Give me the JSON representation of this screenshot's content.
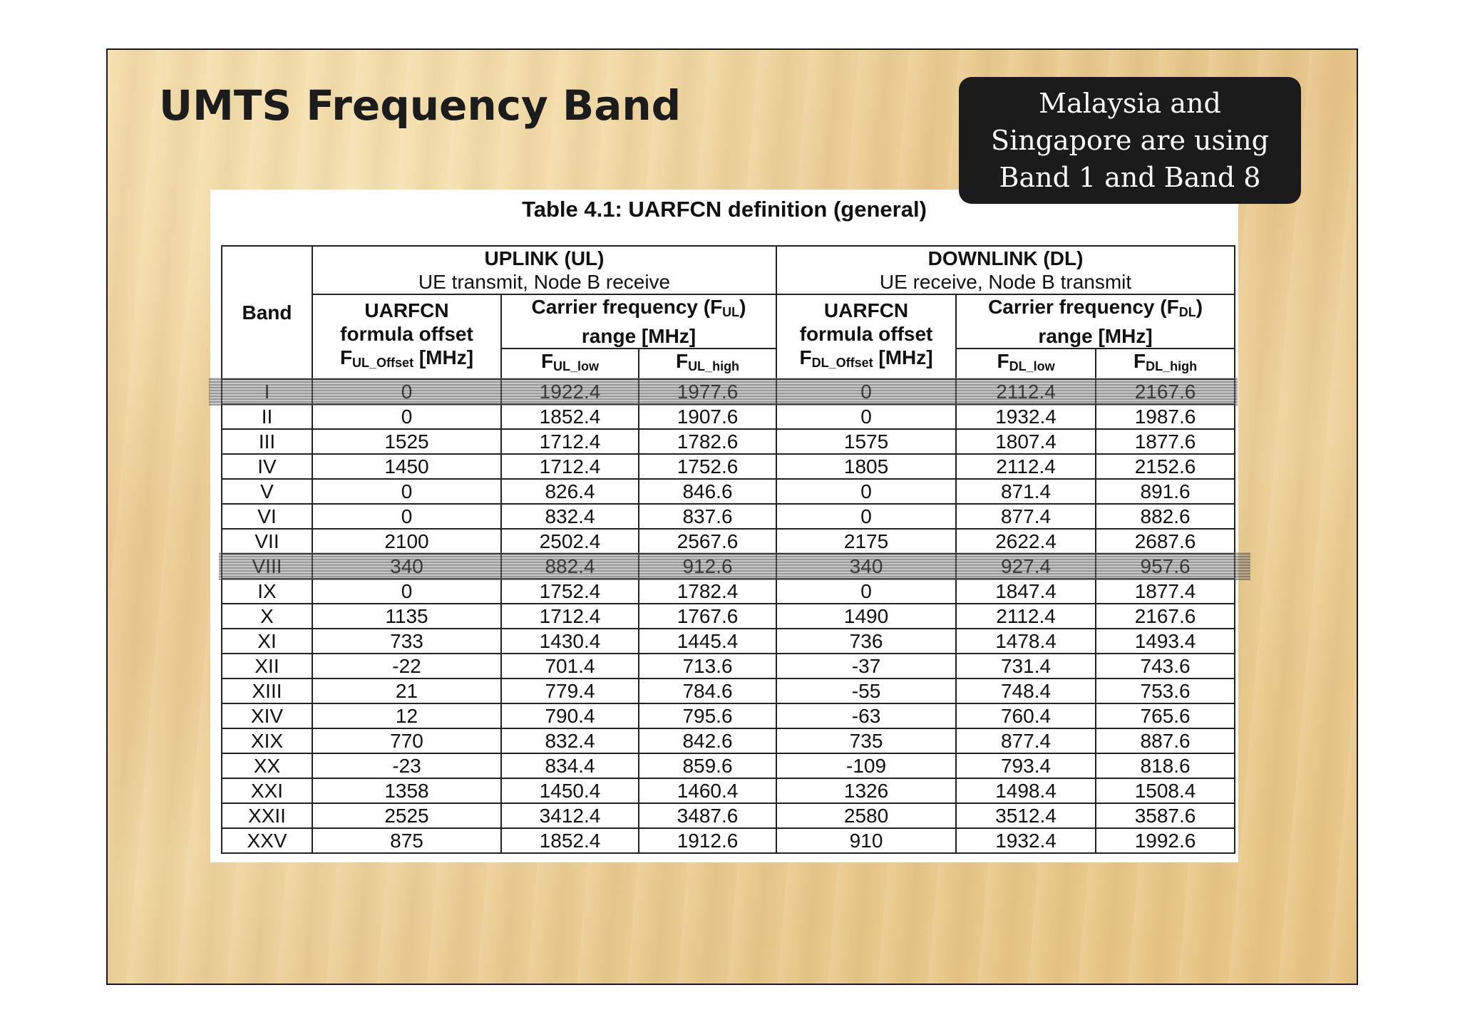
{
  "slide": {
    "title": "UMTS Frequency Band",
    "note": "Malaysia and Singapore are using Band 1 and Band 8"
  },
  "table": {
    "caption": "Table 4.1: UARFCN definition (general)",
    "headers": {
      "band": "Band",
      "uplink_title": "UPLINK (UL)",
      "uplink_sub": "UE transmit, Node B receive",
      "downlink_title": "DOWNLINK (DL)",
      "downlink_sub": "UE receive, Node B transmit",
      "uarfcn_l1": "UARFCN",
      "uarfcn_l2": "formula offset",
      "ul_offset_prefix": "F",
      "ul_offset_sub": "UL_Offset",
      "dl_offset_prefix": "F",
      "dl_offset_sub": "DL_Offset",
      "offset_unit": " [MHz]",
      "carrier_l1_prefix": "Carrier frequency (F",
      "carrier_ul_sub": "UL",
      "carrier_dl_sub": "DL",
      "carrier_l1_suffix": ")",
      "carrier_l2": "range [MHz]",
      "f_prefix": "F",
      "ul_low_sub": "UL_low",
      "ul_high_sub": "UL_high",
      "dl_low_sub": "DL_low",
      "dl_high_sub": "DL_high"
    },
    "rows": [
      {
        "band": "I",
        "ul_offset": "0",
        "ul_low": "1922.4",
        "ul_high": "1977.6",
        "dl_offset": "0",
        "dl_low": "2112.4",
        "dl_high": "2167.6"
      },
      {
        "band": "II",
        "ul_offset": "0",
        "ul_low": "1852.4",
        "ul_high": "1907.6",
        "dl_offset": "0",
        "dl_low": "1932.4",
        "dl_high": "1987.6"
      },
      {
        "band": "III",
        "ul_offset": "1525",
        "ul_low": "1712.4",
        "ul_high": "1782.6",
        "dl_offset": "1575",
        "dl_low": "1807.4",
        "dl_high": "1877.6"
      },
      {
        "band": "IV",
        "ul_offset": "1450",
        "ul_low": "1712.4",
        "ul_high": "1752.6",
        "dl_offset": "1805",
        "dl_low": "2112.4",
        "dl_high": "2152.6"
      },
      {
        "band": "V",
        "ul_offset": "0",
        "ul_low": "826.4",
        "ul_high": "846.6",
        "dl_offset": "0",
        "dl_low": "871.4",
        "dl_high": "891.6"
      },
      {
        "band": "VI",
        "ul_offset": "0",
        "ul_low": "832.4",
        "ul_high": "837.6",
        "dl_offset": "0",
        "dl_low": "877.4",
        "dl_high": "882.6"
      },
      {
        "band": "VII",
        "ul_offset": "2100",
        "ul_low": "2502.4",
        "ul_high": "2567.6",
        "dl_offset": "2175",
        "dl_low": "2622.4",
        "dl_high": "2687.6"
      },
      {
        "band": "VIII",
        "ul_offset": "340",
        "ul_low": "882.4",
        "ul_high": "912.6",
        "dl_offset": "340",
        "dl_low": "927.4",
        "dl_high": "957.6"
      },
      {
        "band": "IX",
        "ul_offset": "0",
        "ul_low": "1752.4",
        "ul_high": "1782.4",
        "dl_offset": "0",
        "dl_low": "1847.4",
        "dl_high": "1877.4"
      },
      {
        "band": "X",
        "ul_offset": "1135",
        "ul_low": "1712.4",
        "ul_high": "1767.6",
        "dl_offset": "1490",
        "dl_low": "2112.4",
        "dl_high": "2167.6"
      },
      {
        "band": "XI",
        "ul_offset": "733",
        "ul_low": "1430.4",
        "ul_high": "1445.4",
        "dl_offset": "736",
        "dl_low": "1478.4",
        "dl_high": "1493.4"
      },
      {
        "band": "XII",
        "ul_offset": "-22",
        "ul_low": "701.4",
        "ul_high": "713.6",
        "dl_offset": "-37",
        "dl_low": "731.4",
        "dl_high": "743.6"
      },
      {
        "band": "XIII",
        "ul_offset": "21",
        "ul_low": "779.4",
        "ul_high": "784.6",
        "dl_offset": "-55",
        "dl_low": "748.4",
        "dl_high": "753.6"
      },
      {
        "band": "XIV",
        "ul_offset": "12",
        "ul_low": "790.4",
        "ul_high": "795.6",
        "dl_offset": "-63",
        "dl_low": "760.4",
        "dl_high": "765.6"
      },
      {
        "band": "XIX",
        "ul_offset": "770",
        "ul_low": "832.4",
        "ul_high": "842.6",
        "dl_offset": "735",
        "dl_low": "877.4",
        "dl_high": "887.6"
      },
      {
        "band": "XX",
        "ul_offset": "-23",
        "ul_low": "834.4",
        "ul_high": "859.6",
        "dl_offset": "-109",
        "dl_low": "793.4",
        "dl_high": "818.6"
      },
      {
        "band": "XXI",
        "ul_offset": "1358",
        "ul_low": "1450.4",
        "ul_high": "1460.4",
        "dl_offset": "1326",
        "dl_low": "1498.4",
        "dl_high": "1508.4"
      },
      {
        "band": "XXII",
        "ul_offset": "2525",
        "ul_low": "3412.4",
        "ul_high": "3487.6",
        "dl_offset": "2580",
        "dl_low": "3512.4",
        "dl_high": "3587.6"
      },
      {
        "band": "XXV",
        "ul_offset": "875",
        "ul_low": "1852.4",
        "ul_high": "1912.6",
        "dl_offset": "910",
        "dl_low": "1932.4",
        "dl_high": "1992.6"
      }
    ],
    "highlighted_bands": [
      "I",
      "VIII"
    ],
    "highlight_color": "#7a7a7a"
  },
  "colors": {
    "note_background": "#1b1b1b",
    "title_text": "#1c1c1c",
    "background_wood": "#ecd09a"
  }
}
